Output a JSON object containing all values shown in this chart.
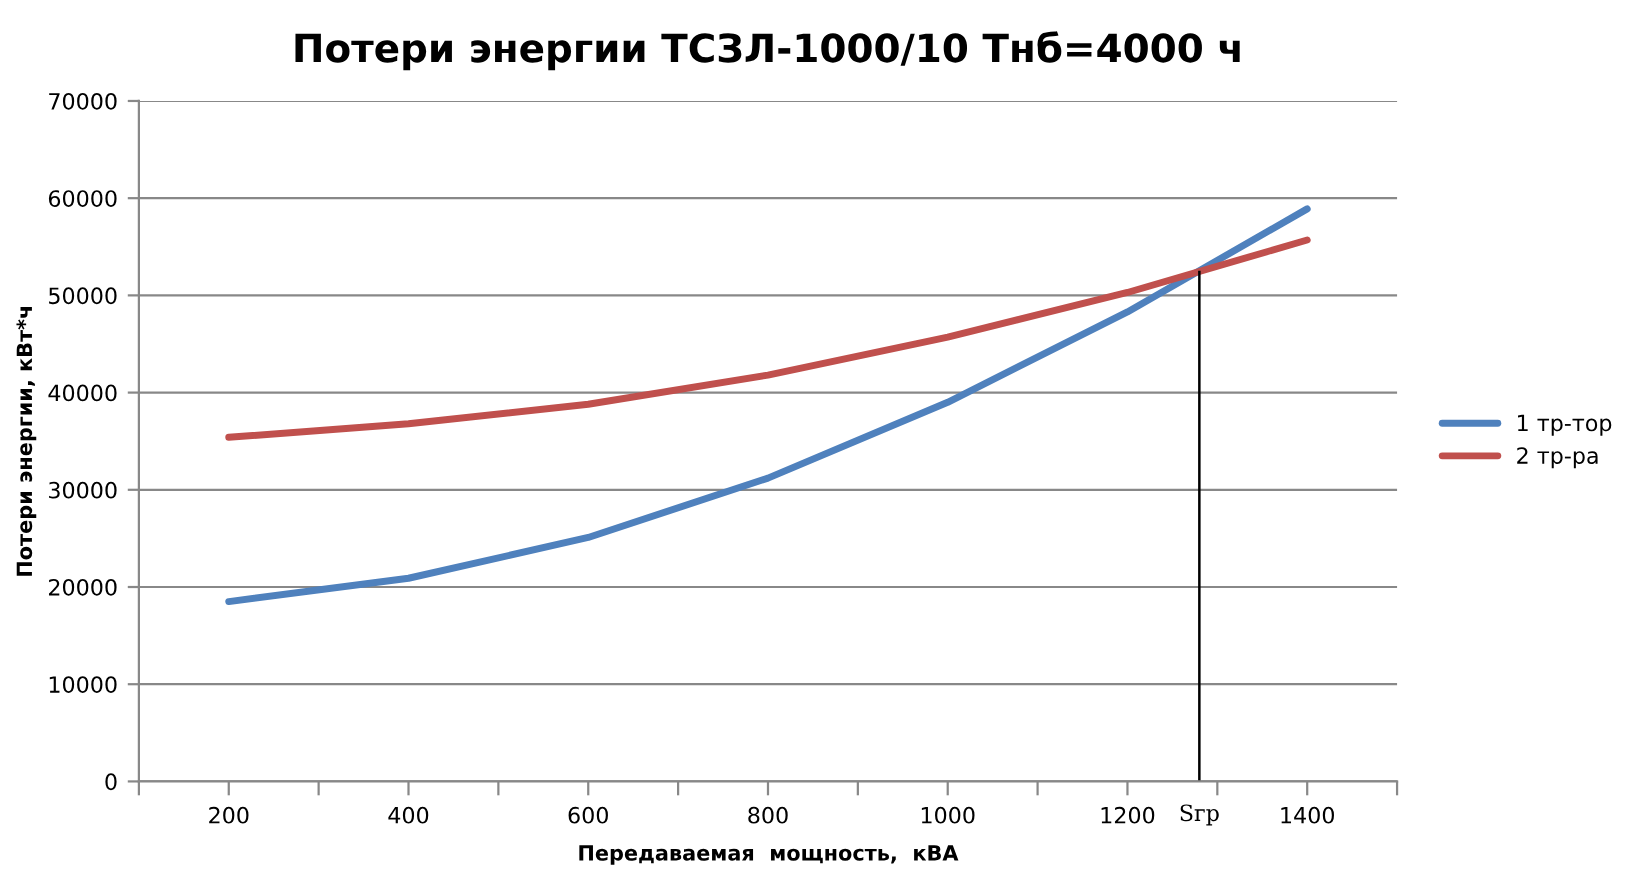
{
  "chart_data": {
    "type": "line",
    "title": "Потери энергии ТСЗЛ-1000/10 Тнб=4000 ч",
    "xlabel": "Передаваемая  мощность,  кВА",
    "ylabel": "Потери энергии, кВт*ч",
    "x": [
      200,
      400,
      600,
      800,
      1000,
      1200,
      1400
    ],
    "series": [
      {
        "name": "1 тр-тор",
        "color": "#4f81bd",
        "values": [
          18500,
          20900,
          25100,
          31200,
          39000,
          48300,
          58900
        ]
      },
      {
        "name": "2 тр-ра",
        "color": "#c0504d",
        "values": [
          35400,
          36800,
          38800,
          41800,
          45700,
          50300,
          55700
        ]
      }
    ],
    "xlim": [
      100,
      1500
    ],
    "xticks": [
      {
        "value": 100,
        "label": null
      },
      200,
      {
        "value": 300,
        "label": null
      },
      400,
      {
        "value": 500,
        "label": null
      },
      600,
      {
        "value": 700,
        "label": null
      },
      800,
      {
        "value": 900,
        "label": null
      },
      1000,
      {
        "value": 1100,
        "label": null
      },
      1200,
      {
        "value": 1300,
        "label": null
      },
      1400,
      {
        "value": 1500,
        "label": null
      }
    ],
    "ylim": [
      0,
      70000
    ],
    "yticks": [
      0,
      10000,
      20000,
      30000,
      40000,
      50000,
      60000,
      70000
    ],
    "ref_lines": [
      {
        "axis": "x",
        "value": 1280,
        "label": "Sгр",
        "color": "#000000"
      }
    ],
    "grid": "y",
    "legend": "right",
    "marker": "none",
    "line_style": "solid"
  }
}
